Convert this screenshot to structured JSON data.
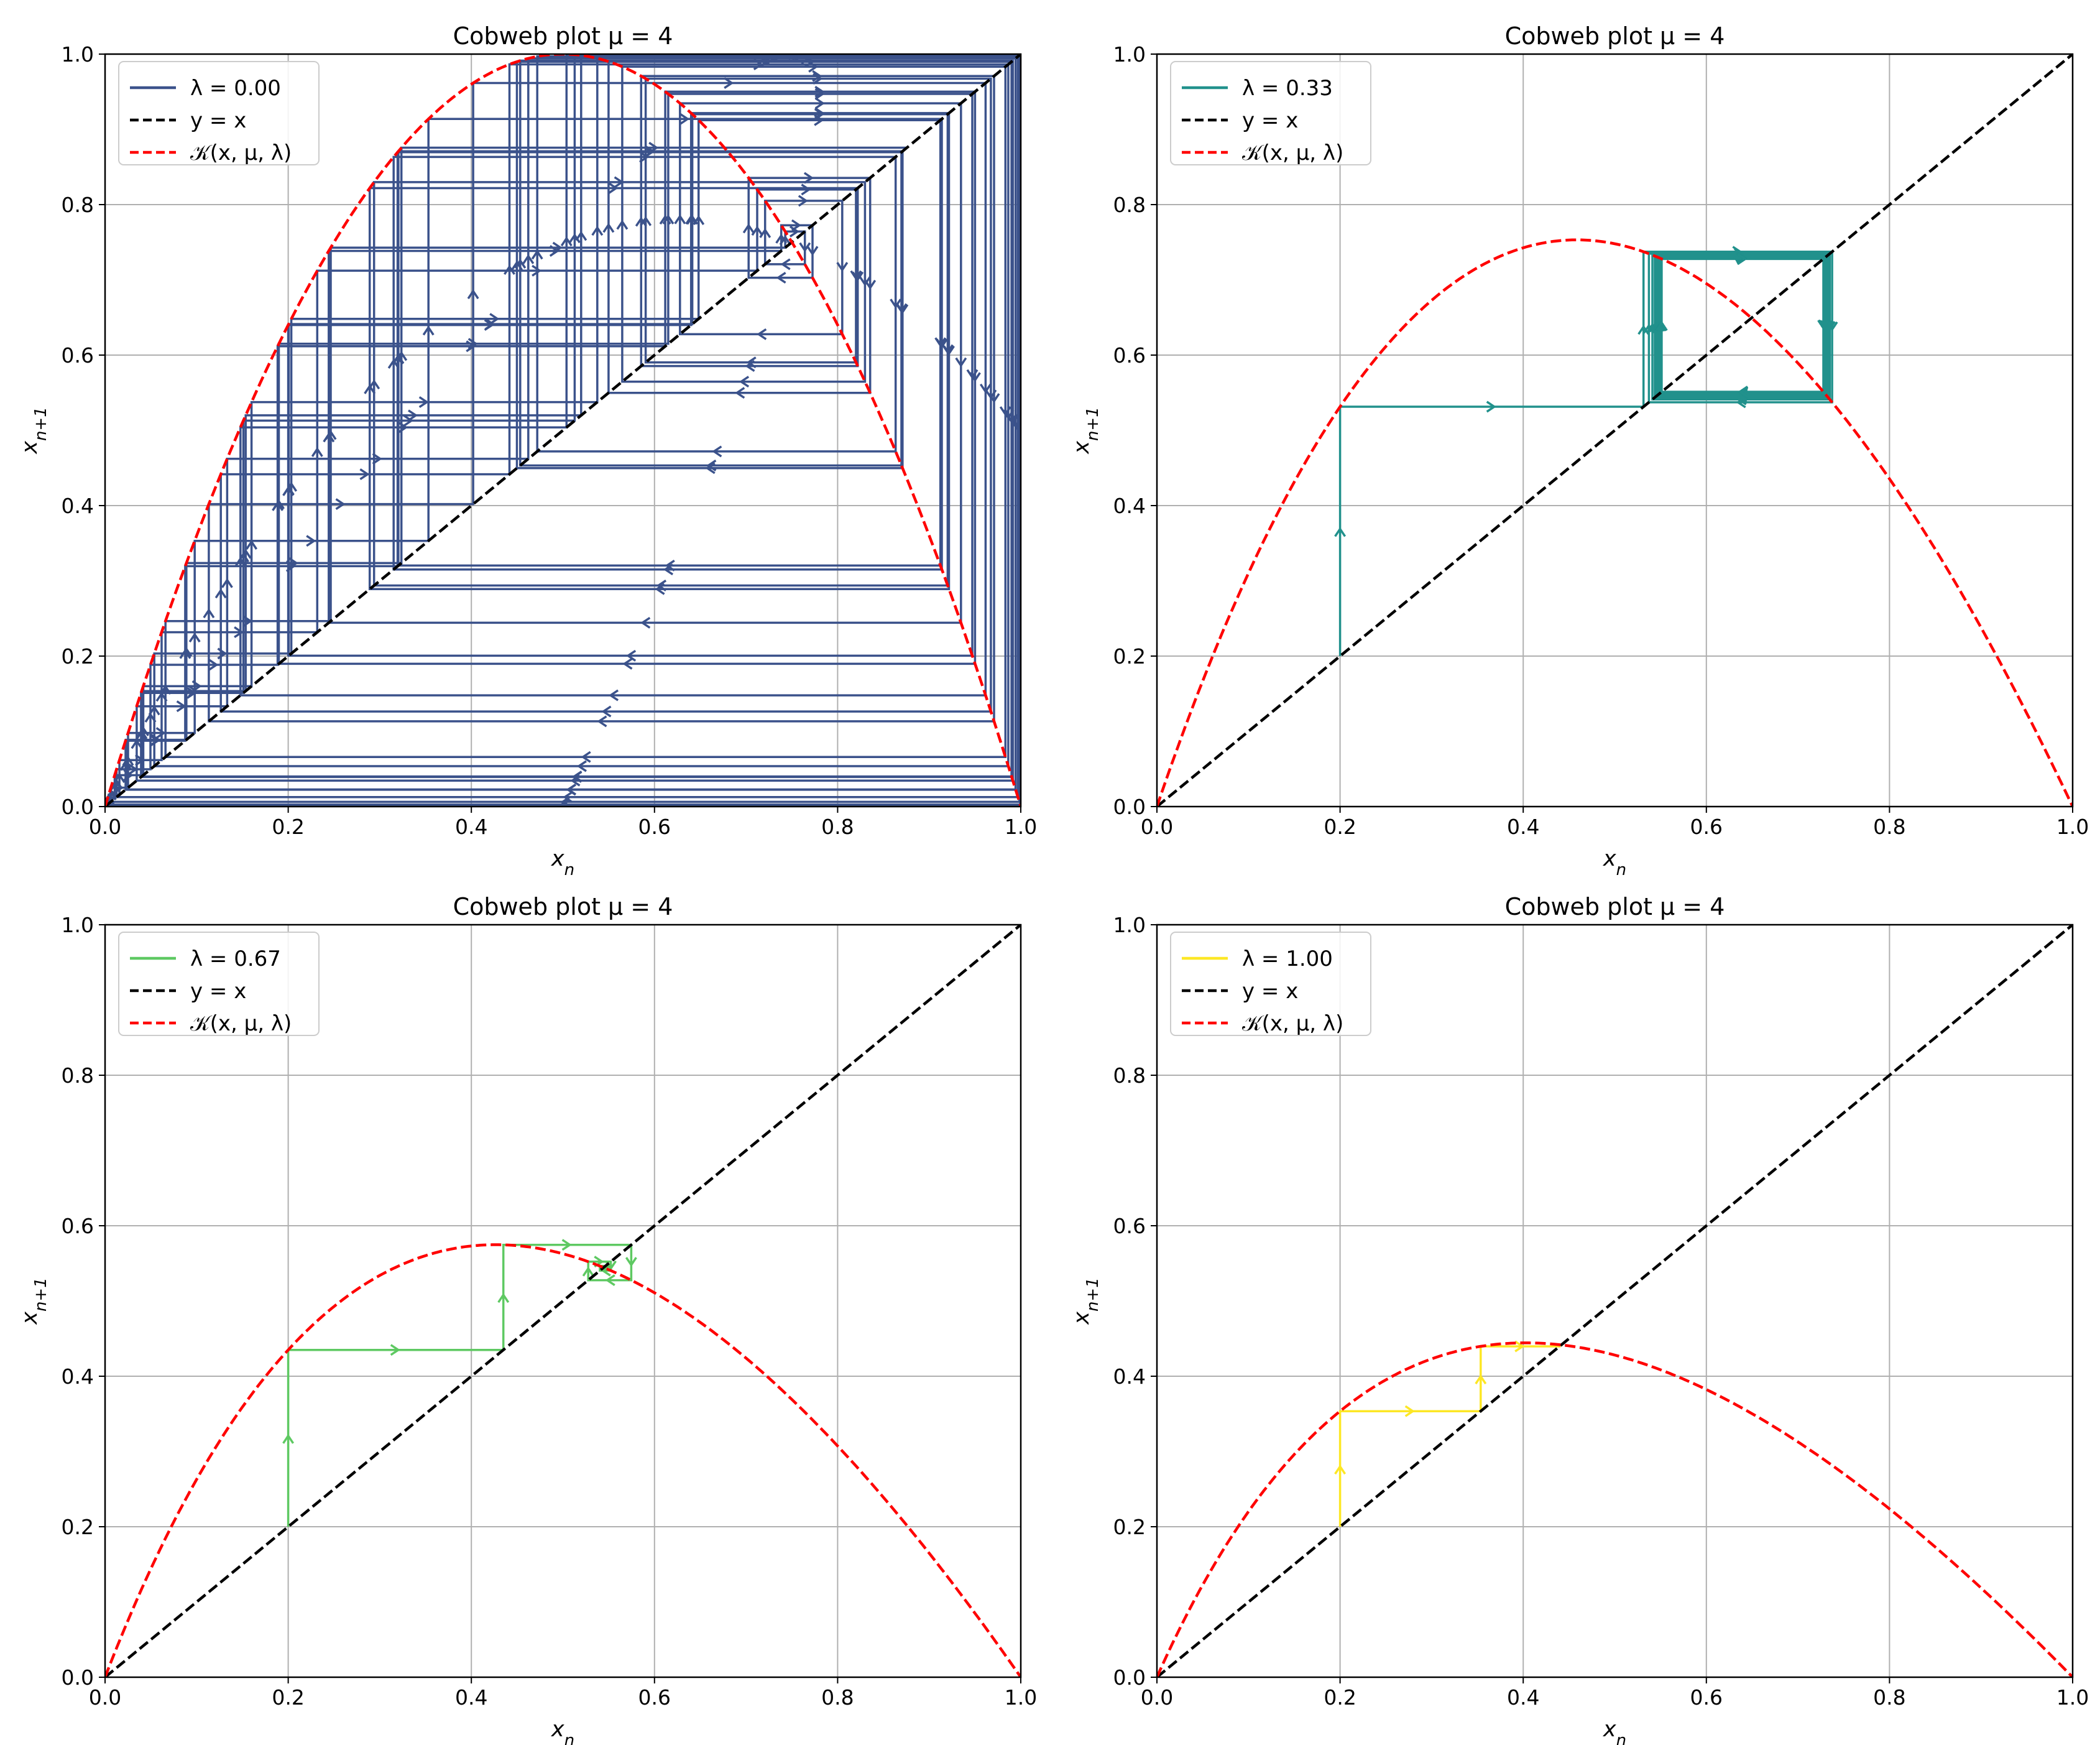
{
  "chart_data": [
    {
      "type": "line",
      "title": "Cobweb plot μ = 4",
      "mu": 4,
      "lambda": 0.0,
      "x0": 0.2,
      "iterations": 100,
      "xlabel": "x_n",
      "ylabel": "x_{n+1}",
      "xlim": [
        0.0,
        1.0
      ],
      "ylim": [
        0.0,
        1.0
      ],
      "xticks": [
        "0.0",
        "0.2",
        "0.4",
        "0.6",
        "0.8",
        "1.0"
      ],
      "yticks": [
        "0.0",
        "0.2",
        "0.4",
        "0.6",
        "0.8",
        "1.0"
      ],
      "grid": true,
      "legend_position": "top-left",
      "legend": [
        "λ = 0.00",
        "y = x",
        "𝒦(x, μ, λ)"
      ],
      "series": [
        {
          "name": "λ = 0.00",
          "role": "cobweb",
          "color": "#3b528b"
        },
        {
          "name": "y = x",
          "role": "identity",
          "color": "#000000",
          "style": "dashed"
        },
        {
          "name": "𝒦(x, μ, λ)",
          "role": "map",
          "color": "#ff0000",
          "style": "dashed"
        }
      ]
    },
    {
      "type": "line",
      "title": "Cobweb plot μ = 4",
      "mu": 4,
      "lambda": 0.33,
      "x0": 0.2,
      "iterations": 100,
      "xlabel": "x_n",
      "ylabel": "x_{n+1}",
      "xlim": [
        0.0,
        1.0
      ],
      "ylim": [
        0.0,
        1.0
      ],
      "xticks": [
        "0.0",
        "0.2",
        "0.4",
        "0.6",
        "0.8",
        "1.0"
      ],
      "yticks": [
        "0.0",
        "0.2",
        "0.4",
        "0.6",
        "0.8",
        "1.0"
      ],
      "grid": true,
      "legend_position": "top-left",
      "legend": [
        "λ = 0.33",
        "y = x",
        "𝒦(x, μ, λ)"
      ],
      "series": [
        {
          "name": "λ = 0.33",
          "role": "cobweb",
          "color": "#21918c"
        },
        {
          "name": "y = x",
          "role": "identity",
          "color": "#000000",
          "style": "dashed"
        },
        {
          "name": "𝒦(x, μ, λ)",
          "role": "map",
          "color": "#ff0000",
          "style": "dashed"
        }
      ]
    },
    {
      "type": "line",
      "title": "Cobweb plot μ = 4",
      "mu": 4,
      "lambda": 0.67,
      "x0": 0.2,
      "iterations": 100,
      "xlabel": "x_n",
      "ylabel": "x_{n+1}",
      "xlim": [
        0.0,
        1.0
      ],
      "ylim": [
        0.0,
        1.0
      ],
      "xticks": [
        "0.0",
        "0.2",
        "0.4",
        "0.6",
        "0.8",
        "1.0"
      ],
      "yticks": [
        "0.0",
        "0.2",
        "0.4",
        "0.6",
        "0.8",
        "1.0"
      ],
      "grid": true,
      "legend_position": "top-left",
      "legend": [
        "λ = 0.67",
        "y = x",
        "𝒦(x, μ, λ)"
      ],
      "series": [
        {
          "name": "λ = 0.67",
          "role": "cobweb",
          "color": "#5ec962"
        },
        {
          "name": "y = x",
          "role": "identity",
          "color": "#000000",
          "style": "dashed"
        },
        {
          "name": "𝒦(x, μ, λ)",
          "role": "map",
          "color": "#ff0000",
          "style": "dashed"
        }
      ]
    },
    {
      "type": "line",
      "title": "Cobweb plot μ = 4",
      "mu": 4,
      "lambda": 1.0,
      "x0": 0.2,
      "iterations": 100,
      "xlabel": "x_n",
      "ylabel": "x_{n+1}",
      "xlim": [
        0.0,
        1.0
      ],
      "ylim": [
        0.0,
        1.0
      ],
      "xticks": [
        "0.0",
        "0.2",
        "0.4",
        "0.6",
        "0.8",
        "1.0"
      ],
      "yticks": [
        "0.0",
        "0.2",
        "0.4",
        "0.6",
        "0.8",
        "1.0"
      ],
      "grid": true,
      "legend_position": "top-left",
      "legend": [
        "λ = 1.00",
        "y = x",
        "𝒦(x, μ, λ)"
      ],
      "series": [
        {
          "name": "λ = 1.00",
          "role": "cobweb",
          "color": "#fde725"
        },
        {
          "name": "y = x",
          "role": "identity",
          "color": "#000000",
          "style": "dashed"
        },
        {
          "name": "𝒦(x, μ, λ)",
          "role": "map",
          "color": "#ff0000",
          "style": "dashed"
        }
      ]
    }
  ]
}
